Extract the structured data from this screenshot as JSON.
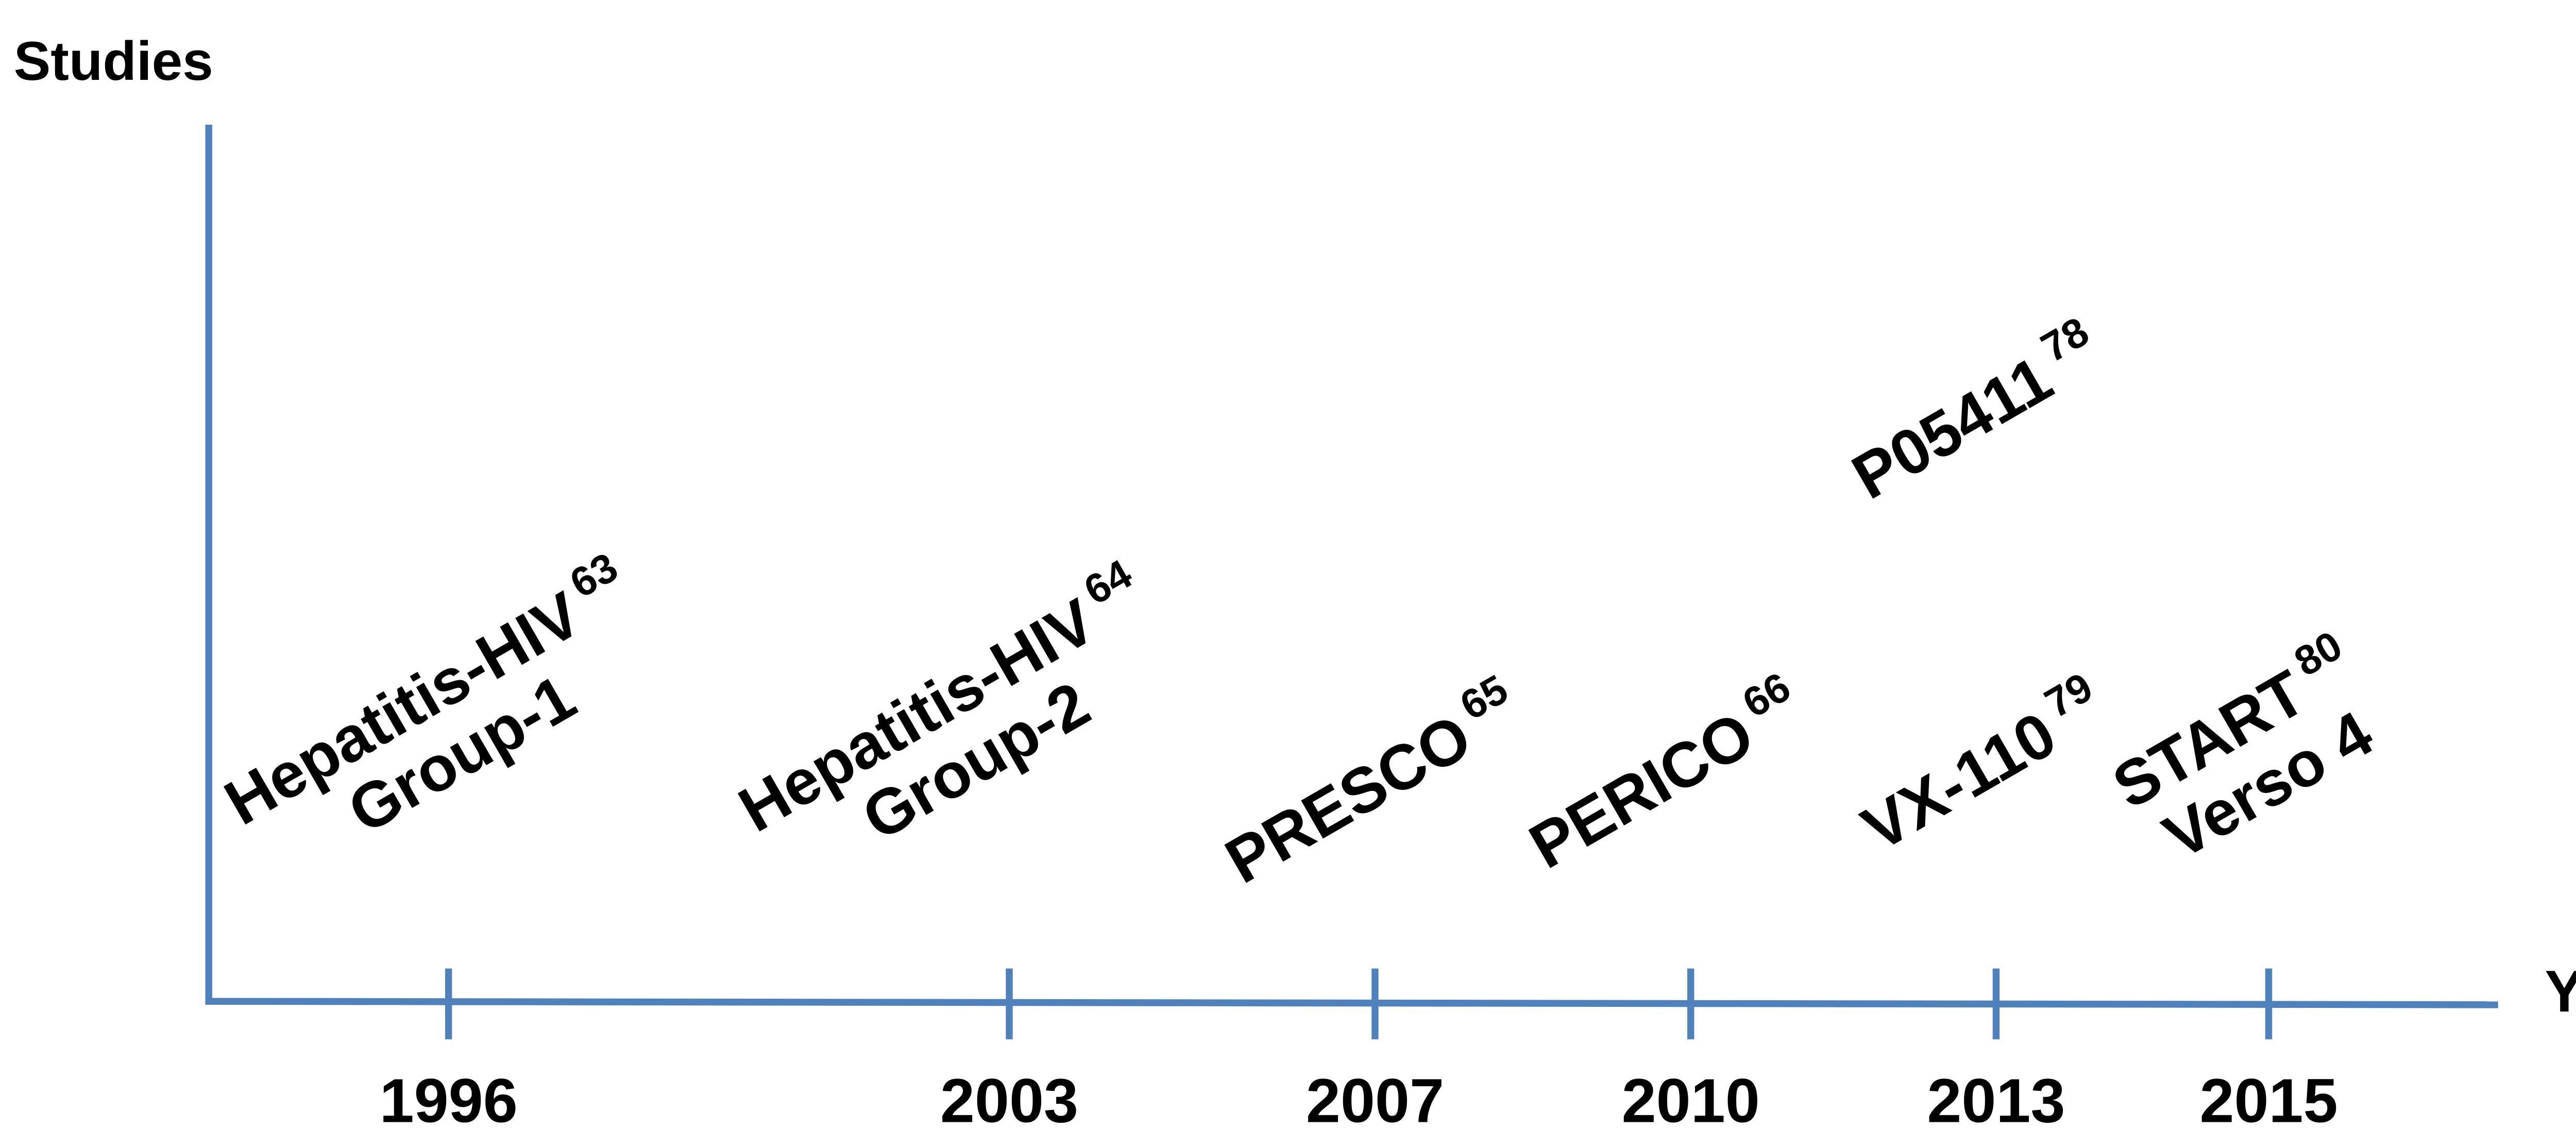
{
  "axes": {
    "y_label": "Studies",
    "x_label": "Year"
  },
  "years": [
    "1996",
    "2003",
    "2007",
    "2010",
    "2013",
    "2015"
  ],
  "studies": [
    {
      "lines": [
        "Hepatitis-HIV",
        "Group-1"
      ],
      "ref": "63"
    },
    {
      "lines": [
        "Hepatitis-HIV",
        "Group-2"
      ],
      "ref": "64"
    },
    {
      "lines": [
        "PRESCO"
      ],
      "ref": "65"
    },
    {
      "lines": [
        "PERICO"
      ],
      "ref": "66"
    },
    {
      "lines": [
        "VX-110"
      ],
      "ref": "79"
    },
    {
      "lines": [
        "START",
        "Verso 4"
      ],
      "ref": "80"
    },
    {
      "lines": [
        "P05411"
      ],
      "ref": "78"
    }
  ]
}
